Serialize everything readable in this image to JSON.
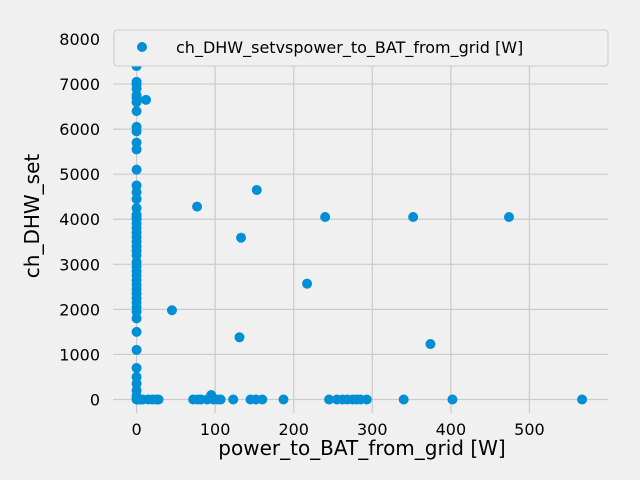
{
  "chart_data": {
    "type": "scatter",
    "xlabel": "power_to_BAT_from_grid [W]",
    "ylabel": "ch_DHW_set",
    "xlim": [
      -30,
      600
    ],
    "ylim": [
      -300,
      8200
    ],
    "xticks": [
      0,
      100,
      200,
      300,
      400,
      500
    ],
    "yticks": [
      0,
      1000,
      2000,
      3000,
      4000,
      5000,
      6000,
      7000,
      8000
    ],
    "grid": true,
    "legend_position": "top-right",
    "series": [
      {
        "name": "ch_DHW_setvspower_to_BAT_from_grid [W]",
        "color": "#008fd5",
        "points": [
          [
            0,
            8100
          ],
          [
            0,
            8000
          ],
          [
            0,
            7900
          ],
          [
            0,
            7600
          ],
          [
            0,
            7400
          ],
          [
            0,
            7050
          ],
          [
            0,
            7000
          ],
          [
            0,
            6900
          ],
          [
            0,
            6750
          ],
          [
            0,
            6700
          ],
          [
            0,
            6600
          ],
          [
            0,
            6400
          ],
          [
            0,
            6050
          ],
          [
            0,
            5950
          ],
          [
            0,
            5700
          ],
          [
            0,
            5550
          ],
          [
            0,
            5100
          ],
          [
            0,
            4750
          ],
          [
            0,
            4600
          ],
          [
            0,
            4450
          ],
          [
            0,
            4250
          ],
          [
            0,
            4100
          ],
          [
            0,
            4050
          ],
          [
            0,
            4000
          ],
          [
            0,
            3900
          ],
          [
            0,
            3800
          ],
          [
            0,
            3700
          ],
          [
            0,
            3600
          ],
          [
            0,
            3500
          ],
          [
            0,
            3400
          ],
          [
            0,
            3300
          ],
          [
            0,
            3200
          ],
          [
            0,
            3050
          ],
          [
            0,
            2950
          ],
          [
            0,
            2850
          ],
          [
            0,
            2750
          ],
          [
            0,
            2650
          ],
          [
            0,
            2550
          ],
          [
            0,
            2450
          ],
          [
            0,
            2350
          ],
          [
            0,
            2250
          ],
          [
            0,
            2150
          ],
          [
            0,
            2050
          ],
          [
            0,
            1950
          ],
          [
            0,
            1800
          ],
          [
            0,
            1500
          ],
          [
            0,
            1100
          ],
          [
            0,
            700
          ],
          [
            0,
            500
          ],
          [
            0,
            350
          ],
          [
            0,
            200
          ],
          [
            0,
            80
          ],
          [
            0,
            20
          ],
          [
            0,
            0
          ],
          [
            12,
            6650
          ],
          [
            45,
            1980
          ],
          [
            77,
            4280
          ],
          [
            131,
            1380
          ],
          [
            133,
            3590
          ],
          [
            153,
            4650
          ],
          [
            217,
            2570
          ],
          [
            240,
            4050
          ],
          [
            352,
            4050
          ],
          [
            374,
            1230
          ],
          [
            474,
            4050
          ],
          [
            2,
            0
          ],
          [
            5,
            0
          ],
          [
            8,
            0
          ],
          [
            15,
            0
          ],
          [
            20,
            0
          ],
          [
            25,
            0
          ],
          [
            28,
            0
          ],
          [
            72,
            0
          ],
          [
            78,
            0
          ],
          [
            82,
            0
          ],
          [
            90,
            0
          ],
          [
            95,
            100
          ],
          [
            98,
            0
          ],
          [
            103,
            0
          ],
          [
            107,
            0
          ],
          [
            123,
            0
          ],
          [
            145,
            0
          ],
          [
            152,
            0
          ],
          [
            160,
            0
          ],
          [
            187,
            0
          ],
          [
            245,
            0
          ],
          [
            255,
            0
          ],
          [
            262,
            0
          ],
          [
            268,
            0
          ],
          [
            275,
            0
          ],
          [
            280,
            0
          ],
          [
            285,
            0
          ],
          [
            293,
            0
          ],
          [
            340,
            0
          ],
          [
            402,
            0
          ],
          [
            567,
            0
          ]
        ]
      }
    ]
  }
}
